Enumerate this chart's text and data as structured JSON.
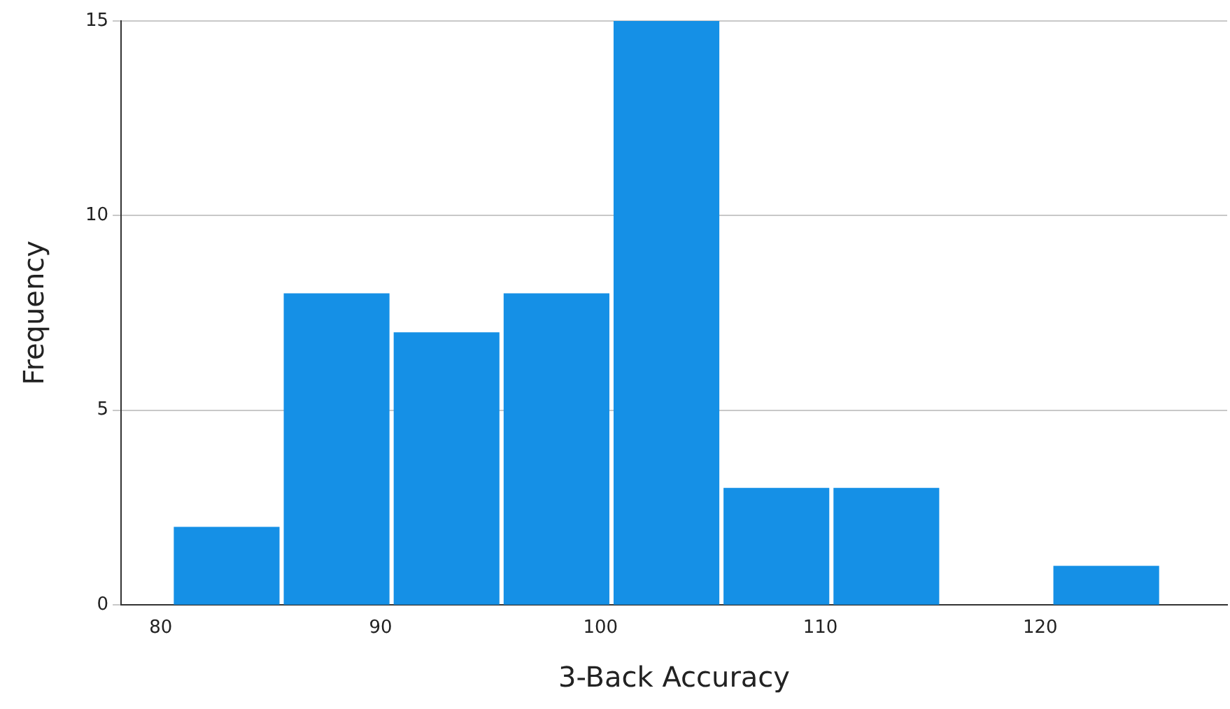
{
  "chart_data": {
    "type": "histogram",
    "xlabel": "3-Back Accuracy",
    "ylabel": "Frequency",
    "bins": [
      80.5,
      85.5,
      90.5,
      95.5,
      100.5,
      105.5,
      110.5,
      115.5,
      120.5,
      125.5
    ],
    "values": [
      2,
      8,
      7,
      8,
      15,
      3,
      3,
      0,
      1
    ],
    "color": "#1590e6",
    "xlim": [
      78.2,
      128.5
    ],
    "xticks": [
      80,
      90,
      100,
      110,
      120
    ],
    "ylim": [
      0,
      15
    ],
    "yticks": [
      0,
      5,
      10,
      15
    ],
    "grid": "y",
    "legend": false
  }
}
